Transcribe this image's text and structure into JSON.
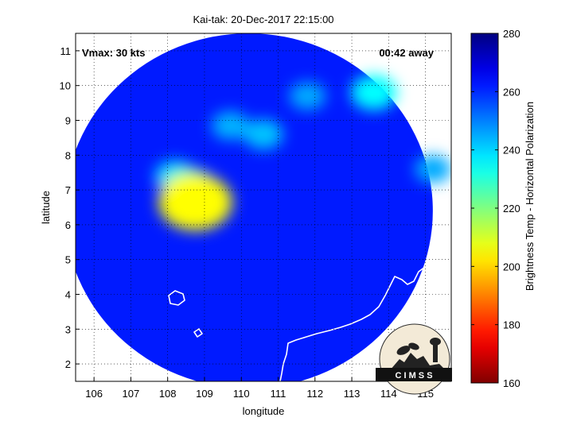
{
  "chart_data": {
    "type": "heatmap",
    "title": "Kai-tak: 20-Dec-2017 22:15:00",
    "xlabel": "longitude",
    "ylabel": "latitude",
    "xlim": [
      105.5,
      115.7
    ],
    "ylim": [
      1.5,
      11.5
    ],
    "xticks": [
      106,
      107,
      108,
      109,
      110,
      111,
      112,
      113,
      114,
      115
    ],
    "yticks": [
      2,
      3,
      4,
      5,
      6,
      7,
      8,
      9,
      10,
      11
    ],
    "grid": true,
    "swath": {
      "center_lon": 110.2,
      "center_lat": 6.4,
      "radius_lon": 5.0,
      "radius_lat": 5.1,
      "background_bt": 262
    },
    "features": [
      {
        "name": "convective core",
        "lon": 108.75,
        "lat": 6.65,
        "bt": 205
      },
      {
        "name": "inner band",
        "lon": 108.6,
        "lat": 7.05,
        "bt": 228
      },
      {
        "name": "western band",
        "lon": 108.2,
        "lat": 7.4,
        "bt": 240
      },
      {
        "name": "northern arc",
        "lon": 109.7,
        "lat": 8.85,
        "bt": 244
      },
      {
        "name": "central cells",
        "lon": 110.6,
        "lat": 8.6,
        "bt": 242
      },
      {
        "name": "northeast cells",
        "lon": 113.6,
        "lat": 9.8,
        "bt": 235
      },
      {
        "name": "north cells",
        "lon": 111.8,
        "lat": 9.7,
        "bt": 245
      },
      {
        "name": "eastern edge",
        "lon": 115.2,
        "lat": 7.6,
        "bt": 245
      }
    ],
    "colorbar": {
      "label": "Brightness Temp - Horizontal Polarization",
      "min": 160,
      "max": 280,
      "ticks": [
        160,
        180,
        200,
        220,
        240,
        260,
        280
      ],
      "colormap": "jet"
    }
  },
  "annotations": {
    "vmax": "Vmax: 30 kts",
    "away": "00:42 away"
  },
  "logo": {
    "text": "C I M S S"
  },
  "colors": {
    "coastline": "#ffffff",
    "axis": "#000000",
    "grid": "#000000"
  }
}
